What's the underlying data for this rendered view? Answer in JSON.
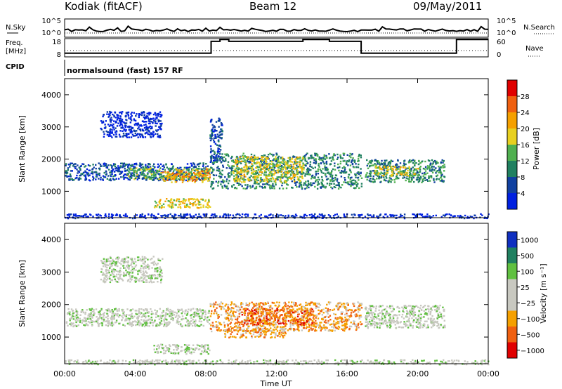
{
  "header": {
    "station": "Kodiak (fitACF)",
    "beam": "Beam 12",
    "date": "09/May/2011"
  },
  "top_panels": {
    "nsky_label": "N.Sky",
    "nsearch_label": "N.Search",
    "nsky_ticks": [
      "10^5",
      "10^0"
    ],
    "nsearch_ticks": [
      "10^5",
      "10^0"
    ],
    "freq_label_1": "Freq.",
    "freq_label_2": "[MHz]",
    "freq_ticks": [
      "18",
      "8"
    ],
    "nave_label": "Nave",
    "nave_ticks": [
      "60",
      "0"
    ],
    "cpid_label": "CPID",
    "cpid_text": "normalsound (fast) 157 RF"
  },
  "chart_data": [
    {
      "type": "heatmap",
      "title": "",
      "xlabel": "",
      "ylabel": "Slant Range [km]",
      "xlim": [
        0,
        24
      ],
      "ylim": [
        180,
        4500
      ],
      "x_ticks": [
        "00:00",
        "04:00",
        "08:00",
        "12:00",
        "16:00",
        "20:00",
        "00:00"
      ],
      "y_ticks": [
        "1000",
        "2000",
        "3000",
        "4000"
      ],
      "colorbar": {
        "label": "Power [dB]",
        "ticks": [
          "28",
          "24",
          "20",
          "16",
          "12",
          "8",
          "4"
        ],
        "colors": [
          "#e00000",
          "#f06010",
          "#f5a000",
          "#e8d020",
          "#50b050",
          "#208060",
          "#1040a0",
          "#0020e0"
        ]
      },
      "regions": [
        {
          "t0": 0.0,
          "t1": 8.2,
          "r0": 1350,
          "r1": 1900,
          "level": 1
        },
        {
          "t0": 3.5,
          "t1": 8.2,
          "r0": 1400,
          "r1": 1750,
          "level": 3
        },
        {
          "t0": 5.5,
          "t1": 8.2,
          "r0": 1300,
          "r1": 1700,
          "level": 5
        },
        {
          "t0": 5.0,
          "t1": 8.2,
          "r0": 500,
          "r1": 800,
          "level": 4
        },
        {
          "t0": 8.2,
          "t1": 16.8,
          "r0": 1100,
          "r1": 2200,
          "level": 2
        },
        {
          "t0": 9.5,
          "t1": 13.5,
          "r0": 1300,
          "r1": 2100,
          "level": 4
        },
        {
          "t0": 17.0,
          "t1": 21.5,
          "r0": 1300,
          "r1": 2000,
          "level": 2
        },
        {
          "t0": 17.5,
          "t1": 20.0,
          "r0": 1500,
          "r1": 1800,
          "level": 4
        },
        {
          "t0": 2.0,
          "t1": 5.5,
          "r0": 2700,
          "r1": 3500,
          "level": 0
        },
        {
          "t0": 8.2,
          "t1": 8.9,
          "r0": 1900,
          "r1": 3300,
          "level": 1
        },
        {
          "t0": 0.0,
          "t1": 24.0,
          "r0": 180,
          "r1": 320,
          "level": 0
        }
      ]
    },
    {
      "type": "heatmap",
      "title": "",
      "xlabel": "Time UT",
      "ylabel": "Slant Range [km]",
      "xlim": [
        0,
        24
      ],
      "ylim": [
        180,
        4500
      ],
      "x_ticks": [
        "00:00",
        "04:00",
        "08:00",
        "12:00",
        "16:00",
        "20:00",
        "00:00"
      ],
      "y_ticks": [
        "1000",
        "2000",
        "3000",
        "4000"
      ],
      "colorbar": {
        "label": "Velocity [m s⁻¹]",
        "ticks": [
          "1000",
          "500",
          "100",
          "25",
          "−25",
          "−100",
          "−500",
          "−1000"
        ],
        "colors": [
          "#1030c0",
          "#208060",
          "#60c040",
          "#c8c8c0",
          "#c8c8c0",
          "#f5a000",
          "#f06010",
          "#e00000"
        ]
      },
      "regions": [
        {
          "t0": 0.0,
          "t1": 8.2,
          "r0": 1350,
          "r1": 1900,
          "level": 3
        },
        {
          "t0": 5.0,
          "t1": 8.2,
          "r0": 500,
          "r1": 800,
          "level": 3
        },
        {
          "t0": 8.2,
          "t1": 16.8,
          "r0": 1200,
          "r1": 2100,
          "level": 5
        },
        {
          "t0": 9.0,
          "t1": 12.5,
          "r0": 1000,
          "r1": 1300,
          "level": 5
        },
        {
          "t0": 10.0,
          "t1": 14.0,
          "r0": 1400,
          "r1": 1900,
          "level": 6
        },
        {
          "t0": 17.0,
          "t1": 21.5,
          "r0": 1300,
          "r1": 2000,
          "level": 3
        },
        {
          "t0": 2.0,
          "t1": 5.5,
          "r0": 2700,
          "r1": 3500,
          "level": 3
        },
        {
          "t0": 0.0,
          "t1": 24.0,
          "r0": 180,
          "r1": 320,
          "level": 3
        }
      ]
    }
  ]
}
